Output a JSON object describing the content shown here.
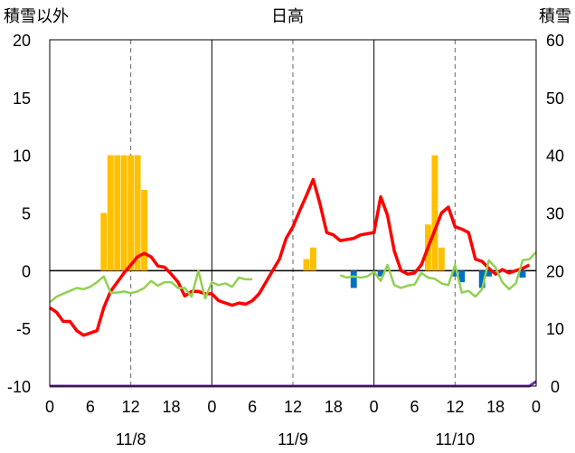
{
  "chart_data": {
    "type": "line+bar",
    "title": "日高",
    "left_axis_label": "積雪以外",
    "right_axis_label": "積雪",
    "left_ylim": [
      -10,
      20
    ],
    "left_ticks": [
      20,
      15,
      10,
      5,
      0,
      -5,
      -10
    ],
    "right_ylim": [
      0,
      60
    ],
    "right_ticks": [
      60,
      50,
      40,
      30,
      20,
      10,
      0
    ],
    "xlim": [
      0,
      72
    ],
    "x_ticks": [
      0,
      6,
      12,
      18,
      24,
      30,
      36,
      42,
      48,
      54,
      60,
      66,
      72
    ],
    "x_tick_labels": [
      "0",
      "6",
      "12",
      "18",
      "0",
      "6",
      "12",
      "18",
      "0",
      "6",
      "12",
      "18",
      "0"
    ],
    "date_labels": [
      {
        "x": 12,
        "text": "11/8"
      },
      {
        "x": 36,
        "text": "11/9"
      },
      {
        "x": 60,
        "text": "11/10"
      }
    ],
    "grid": {
      "solid_x": [
        24,
        48
      ],
      "dashed_x": [
        12,
        36,
        60
      ],
      "zero_line": 0
    },
    "series": [
      {
        "kind": "bar",
        "color": "#FFC000",
        "x": [
          8,
          9,
          10,
          11,
          12,
          13,
          14,
          38,
          39,
          56,
          57,
          58
        ],
        "y": [
          5,
          10,
          10,
          10,
          10,
          10,
          7,
          1,
          2,
          4,
          10,
          2
        ]
      },
      {
        "kind": "bar",
        "color": "#0070C0",
        "x": [
          45,
          49,
          60,
          61,
          64,
          65,
          70
        ],
        "y": [
          -1.5,
          -0.5,
          -0.5,
          -1,
          -1.5,
          -0.5,
          -0.6
        ]
      },
      {
        "kind": "line",
        "color": "#FF0000",
        "x": [
          0,
          1,
          2,
          3,
          4,
          5,
          6,
          7,
          8,
          9,
          10,
          11,
          12,
          13,
          14,
          15,
          16,
          17,
          18,
          19,
          20,
          21,
          22,
          23,
          24,
          25,
          26,
          27,
          28,
          29,
          30,
          31,
          32,
          33,
          34,
          35,
          36,
          37,
          38,
          39,
          40,
          41,
          42,
          43,
          44,
          45,
          46,
          47,
          48,
          49,
          50,
          51,
          52,
          53,
          54,
          55,
          56,
          57,
          58,
          59,
          60,
          61,
          62,
          63,
          64,
          65,
          66,
          67,
          68,
          69,
          70,
          71
        ],
        "y": [
          -3.2,
          -3.6,
          -4.4,
          -4.4,
          -5.2,
          -5.6,
          -5.4,
          -5.2,
          -3.2,
          -1.8,
          -1.0,
          -0.2,
          0.5,
          1.2,
          1.5,
          1.2,
          0.4,
          0.3,
          -0.3,
          -1.0,
          -2.2,
          -1.8,
          -1.8,
          -2.0,
          -2.0,
          -2.6,
          -2.8,
          -3.0,
          -2.8,
          -2.9,
          -2.6,
          -2.0,
          -1.0,
          0.0,
          1.0,
          2.8,
          3.8,
          5.2,
          6.5,
          7.9,
          5.8,
          3.3,
          3.1,
          2.6,
          2.7,
          2.8,
          3.1,
          3.2,
          3.3,
          6.4,
          4.8,
          1.7,
          0.0,
          -0.3,
          -0.2,
          0.5,
          2.0,
          3.5,
          5.0,
          5.5,
          3.8,
          3.6,
          3.3,
          1.0,
          0.8,
          0.2,
          -0.3,
          0.1,
          -0.2,
          0.0,
          0.2,
          0.5
        ]
      },
      {
        "kind": "line",
        "color": "#92D050",
        "unit": "right",
        "x": [
          0,
          1,
          2,
          3,
          4,
          5,
          6,
          7,
          8,
          9,
          10,
          11,
          12,
          13,
          14,
          15,
          16,
          17,
          18,
          19,
          20,
          21,
          22,
          23,
          24,
          25,
          26,
          27,
          28,
          29,
          30,
          31,
          32,
          33,
          34,
          35,
          36,
          37,
          38,
          39,
          40,
          41,
          42,
          43,
          44,
          45,
          46,
          47,
          48,
          49,
          50,
          51,
          52,
          53,
          54,
          55,
          56,
          57,
          58,
          59,
          60,
          61,
          62,
          63,
          64,
          65,
          66,
          67,
          68,
          69,
          70,
          71,
          72
        ],
        "y": [
          14.5,
          15.5,
          16,
          16.5,
          17,
          16.8,
          17.2,
          18,
          19,
          16.2,
          16.2,
          16.4,
          16.1,
          16.4,
          17,
          18.2,
          17.4,
          18,
          18,
          17,
          17,
          15.5,
          20,
          15.2,
          18,
          17.5,
          17.8,
          17.2,
          18.8,
          18.5,
          18.5,
          null,
          null,
          null,
          null,
          null,
          null,
          null,
          null,
          null,
          null,
          null,
          null,
          19.2,
          18.8,
          19,
          18.8,
          19,
          19.8,
          18.2,
          21,
          17.5,
          17,
          17.4,
          17.6,
          19.6,
          18.8,
          18.6,
          17.8,
          17.5,
          21,
          16.2,
          16.5,
          15.5,
          16.8,
          21.8,
          20.5,
          18,
          16.8,
          17.8,
          21.8,
          22,
          23.2
        ]
      },
      {
        "kind": "line",
        "color": "#7030A0",
        "x": [
          0,
          71,
          72
        ],
        "y": [
          -10,
          -10,
          -9.6
        ]
      }
    ]
  }
}
